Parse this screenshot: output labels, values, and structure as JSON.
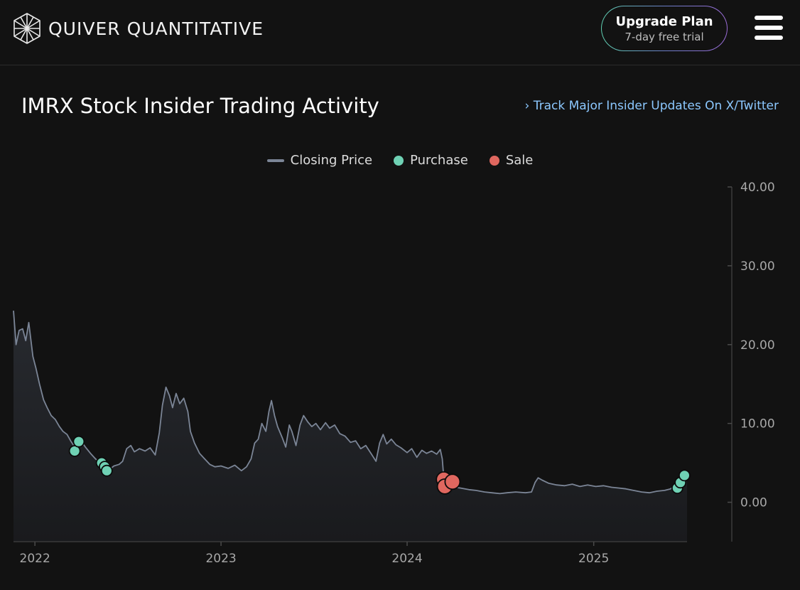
{
  "brand": {
    "name": "QUIVER QUANTITATIVE",
    "logo_icon": "cube-lattice-icon"
  },
  "header": {
    "upgrade_title": "Upgrade Plan",
    "upgrade_subtitle": "7-day free trial",
    "menu_icon": "hamburger-menu-icon"
  },
  "page": {
    "title": "IMRX Stock Insider Trading Activity",
    "track_link": "Track Major Insider Updates On X/Twitter"
  },
  "colors": {
    "background": "#121212",
    "price_line": "#7b8596",
    "purchase": "#6fd1b4",
    "sale": "#e0675f",
    "link": "#8cc8ff"
  },
  "chart_data": {
    "type": "line",
    "x_range": [
      "2021-11-20",
      "2025-07-03"
    ],
    "ylim": [
      -5,
      40
    ],
    "y_ticks": [
      "40.00",
      "30.00",
      "20.00",
      "10.00",
      "0.00"
    ],
    "y_tick_values": [
      40,
      30,
      20,
      10,
      0
    ],
    "x_ticks": [
      {
        "date": "2022-01-01",
        "label": "2022"
      },
      {
        "date": "2023-01-01",
        "label": "2023"
      },
      {
        "date": "2024-01-01",
        "label": "2024"
      },
      {
        "date": "2025-01-01",
        "label": "2025"
      }
    ],
    "legend": {
      "price": "Closing Price",
      "purchase": "Purchase",
      "sale": "Sale"
    },
    "series": [
      {
        "name": "Closing Price",
        "points": [
          [
            "2021-11-20",
            24.3
          ],
          [
            "2021-11-25",
            20.0
          ],
          [
            "2021-12-01",
            21.8
          ],
          [
            "2021-12-08",
            22.0
          ],
          [
            "2021-12-14",
            20.5
          ],
          [
            "2021-12-20",
            22.8
          ],
          [
            "2021-12-28",
            18.5
          ],
          [
            "2022-01-03",
            17.0
          ],
          [
            "2022-01-10",
            15.0
          ],
          [
            "2022-01-18",
            13.0
          ],
          [
            "2022-01-25",
            12.0
          ],
          [
            "2022-02-02",
            11.0
          ],
          [
            "2022-02-10",
            10.5
          ],
          [
            "2022-02-18",
            9.6
          ],
          [
            "2022-02-25",
            9.0
          ],
          [
            "2022-03-05",
            8.6
          ],
          [
            "2022-03-12",
            7.8
          ],
          [
            "2022-03-22",
            6.8
          ],
          [
            "2022-04-01",
            7.8
          ],
          [
            "2022-04-10",
            7.0
          ],
          [
            "2022-04-20",
            6.2
          ],
          [
            "2022-04-30",
            5.5
          ],
          [
            "2022-05-10",
            5.0
          ],
          [
            "2022-05-20",
            4.2
          ],
          [
            "2022-05-28",
            4.2
          ],
          [
            "2022-06-05",
            4.6
          ],
          [
            "2022-06-15",
            4.8
          ],
          [
            "2022-06-22",
            5.2
          ],
          [
            "2022-06-30",
            6.8
          ],
          [
            "2022-07-08",
            7.2
          ],
          [
            "2022-07-15",
            6.4
          ],
          [
            "2022-07-25",
            6.8
          ],
          [
            "2022-08-05",
            6.5
          ],
          [
            "2022-08-15",
            6.9
          ],
          [
            "2022-08-25",
            6.0
          ],
          [
            "2022-09-02",
            8.8
          ],
          [
            "2022-09-08",
            12.3
          ],
          [
            "2022-09-15",
            14.6
          ],
          [
            "2022-09-22",
            13.5
          ],
          [
            "2022-09-28",
            12.0
          ],
          [
            "2022-10-05",
            13.8
          ],
          [
            "2022-10-12",
            12.5
          ],
          [
            "2022-10-20",
            13.2
          ],
          [
            "2022-10-28",
            11.5
          ],
          [
            "2022-11-02",
            9.0
          ],
          [
            "2022-11-10",
            7.5
          ],
          [
            "2022-11-20",
            6.2
          ],
          [
            "2022-11-30",
            5.5
          ],
          [
            "2022-12-10",
            4.8
          ],
          [
            "2022-12-20",
            4.5
          ],
          [
            "2023-01-01",
            4.6
          ],
          [
            "2023-01-15",
            4.3
          ],
          [
            "2023-01-28",
            4.7
          ],
          [
            "2023-02-10",
            4.0
          ],
          [
            "2023-02-20",
            4.5
          ],
          [
            "2023-03-01",
            5.5
          ],
          [
            "2023-03-08",
            7.5
          ],
          [
            "2023-03-15",
            8.0
          ],
          [
            "2023-03-22",
            10.0
          ],
          [
            "2023-03-30",
            9.0
          ],
          [
            "2023-04-05",
            11.5
          ],
          [
            "2023-04-10",
            12.9
          ],
          [
            "2023-04-16",
            11.0
          ],
          [
            "2023-04-22",
            9.6
          ],
          [
            "2023-05-01",
            8.2
          ],
          [
            "2023-05-08",
            7.0
          ],
          [
            "2023-05-15",
            9.8
          ],
          [
            "2023-05-20",
            9.0
          ],
          [
            "2023-05-28",
            7.2
          ],
          [
            "2023-06-05",
            9.8
          ],
          [
            "2023-06-12",
            11.0
          ],
          [
            "2023-06-20",
            10.2
          ],
          [
            "2023-06-28",
            9.6
          ],
          [
            "2023-07-06",
            10.0
          ],
          [
            "2023-07-15",
            9.2
          ],
          [
            "2023-07-25",
            10.1
          ],
          [
            "2023-08-02",
            9.4
          ],
          [
            "2023-08-12",
            9.8
          ],
          [
            "2023-08-22",
            8.7
          ],
          [
            "2023-09-01",
            8.4
          ],
          [
            "2023-09-12",
            7.6
          ],
          [
            "2023-09-22",
            7.8
          ],
          [
            "2023-10-02",
            6.8
          ],
          [
            "2023-10-12",
            7.2
          ],
          [
            "2023-10-22",
            6.2
          ],
          [
            "2023-11-01",
            5.2
          ],
          [
            "2023-11-08",
            7.5
          ],
          [
            "2023-11-15",
            8.6
          ],
          [
            "2023-11-22",
            7.4
          ],
          [
            "2023-12-01",
            8.0
          ],
          [
            "2023-12-10",
            7.3
          ],
          [
            "2023-12-20",
            6.9
          ],
          [
            "2024-01-01",
            6.3
          ],
          [
            "2024-01-10",
            6.8
          ],
          [
            "2024-01-20",
            5.7
          ],
          [
            "2024-01-30",
            6.6
          ],
          [
            "2024-02-08",
            6.2
          ],
          [
            "2024-02-18",
            6.5
          ],
          [
            "2024-02-28",
            6.1
          ],
          [
            "2024-03-06",
            6.7
          ],
          [
            "2024-03-10",
            5.5
          ],
          [
            "2024-03-13",
            3.0
          ],
          [
            "2024-03-18",
            2.3
          ],
          [
            "2024-03-26",
            2.1
          ],
          [
            "2024-04-05",
            1.9
          ],
          [
            "2024-04-15",
            1.8
          ],
          [
            "2024-05-01",
            1.6
          ],
          [
            "2024-05-15",
            1.5
          ],
          [
            "2024-06-01",
            1.3
          ],
          [
            "2024-06-15",
            1.2
          ],
          [
            "2024-07-01",
            1.1
          ],
          [
            "2024-07-15",
            1.2
          ],
          [
            "2024-08-01",
            1.3
          ],
          [
            "2024-08-20",
            1.2
          ],
          [
            "2024-09-01",
            1.3
          ],
          [
            "2024-09-08",
            2.5
          ],
          [
            "2024-09-14",
            3.1
          ],
          [
            "2024-09-22",
            2.8
          ],
          [
            "2024-10-05",
            2.4
          ],
          [
            "2024-10-20",
            2.2
          ],
          [
            "2024-11-05",
            2.1
          ],
          [
            "2024-11-20",
            2.3
          ],
          [
            "2024-12-05",
            2.0
          ],
          [
            "2024-12-20",
            2.2
          ],
          [
            "2025-01-05",
            2.0
          ],
          [
            "2025-01-20",
            2.1
          ],
          [
            "2025-02-05",
            1.9
          ],
          [
            "2025-02-20",
            1.8
          ],
          [
            "2025-03-05",
            1.7
          ],
          [
            "2025-03-20",
            1.5
          ],
          [
            "2025-04-05",
            1.3
          ],
          [
            "2025-04-20",
            1.2
          ],
          [
            "2025-05-05",
            1.4
          ],
          [
            "2025-05-20",
            1.5
          ],
          [
            "2025-06-01",
            1.7
          ],
          [
            "2025-06-10",
            2.2
          ],
          [
            "2025-06-20",
            2.5
          ],
          [
            "2025-07-03",
            3.0
          ]
        ]
      },
      {
        "name": "Purchase",
        "points": [
          [
            "2022-03-20",
            6.5
          ],
          [
            "2022-03-28",
            7.7
          ],
          [
            "2022-05-12",
            5.0
          ],
          [
            "2022-05-18",
            4.5
          ],
          [
            "2022-05-22",
            4.0
          ],
          [
            "2025-06-14",
            1.8
          ],
          [
            "2025-06-20",
            2.5
          ],
          [
            "2025-06-28",
            3.4
          ]
        ]
      },
      {
        "name": "Sale",
        "points": [
          [
            "2024-03-13",
            2.9
          ],
          [
            "2024-03-15",
            2.0
          ],
          [
            "2024-03-30",
            2.6
          ]
        ]
      }
    ]
  }
}
